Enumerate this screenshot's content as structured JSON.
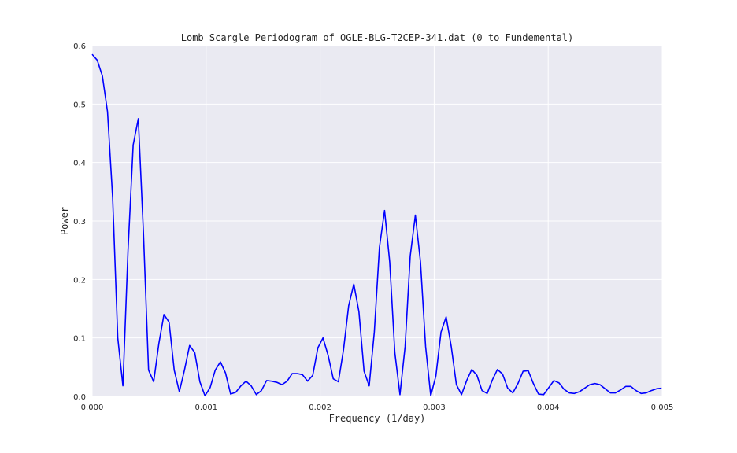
{
  "chart_data": {
    "type": "line",
    "title": "Lomb Scargle Periodogram of OGLE-BLG-T2CEP-341.dat (0 to Fundemental)",
    "x_label": "Frequency (1/day)",
    "y_label": "Power",
    "x": [
      0,
      4.5e-05,
      9e-05,
      0.000135,
      0.00018,
      0.000225,
      0.00027,
      0.000315,
      0.00036,
      0.000405,
      0.00045,
      0.000495,
      0.00054,
      0.000585,
      0.00063,
      0.000675,
      0.00072,
      0.000765,
      0.00081,
      0.000855,
      0.0009,
      0.000945,
      0.00099,
      0.001035,
      0.00108,
      0.001125,
      0.00117,
      0.001215,
      0.00126,
      0.001305,
      0.00135,
      0.001395,
      0.00144,
      0.001485,
      0.00153,
      0.001575,
      0.00162,
      0.001665,
      0.00171,
      0.001755,
      0.0018,
      0.001845,
      0.00189,
      0.001935,
      0.00198,
      0.002025,
      0.00207,
      0.002115,
      0.00216,
      0.002205,
      0.00225,
      0.002295,
      0.00234,
      0.002385,
      0.00243,
      0.002475,
      0.00252,
      0.002565,
      0.00261,
      0.002655,
      0.0027,
      0.002745,
      0.00279,
      0.002835,
      0.00288,
      0.002925,
      0.00297,
      0.003015,
      0.00306,
      0.003105,
      0.00315,
      0.003195,
      0.00324,
      0.003285,
      0.00333,
      0.003375,
      0.00342,
      0.003465,
      0.00351,
      0.003555,
      0.0036,
      0.003645,
      0.00369,
      0.003735,
      0.00378,
      0.003825,
      0.00387,
      0.003915,
      0.00396,
      0.004005,
      0.00405,
      0.004095,
      0.00414,
      0.004185,
      0.00423,
      0.004275,
      0.00432,
      0.004365,
      0.00441,
      0.004455,
      0.0045,
      0.004545,
      0.00459,
      0.004635,
      0.00468,
      0.004725,
      0.00477,
      0.004815,
      0.00486,
      0.004905,
      0.00495,
      0.004995
    ],
    "series": [
      {
        "color": "#0000ff",
        "values": [
          0.585,
          0.575,
          0.548,
          0.487,
          0.34,
          0.1,
          0.018,
          0.25,
          0.43,
          0.475,
          0.28,
          0.045,
          0.025,
          0.09,
          0.14,
          0.127,
          0.045,
          0.008,
          0.045,
          0.087,
          0.075,
          0.025,
          0.001,
          0.015,
          0.045,
          0.059,
          0.04,
          0.004,
          0.007,
          0.018,
          0.026,
          0.018,
          0.003,
          0.01,
          0.027,
          0.026,
          0.024,
          0.02,
          0.026,
          0.039,
          0.039,
          0.037,
          0.026,
          0.036,
          0.083,
          0.1,
          0.07,
          0.03,
          0.025,
          0.08,
          0.155,
          0.192,
          0.145,
          0.043,
          0.018,
          0.11,
          0.255,
          0.318,
          0.23,
          0.075,
          0.003,
          0.085,
          0.24,
          0.31,
          0.23,
          0.085,
          0.001,
          0.035,
          0.11,
          0.136,
          0.085,
          0.02,
          0.003,
          0.027,
          0.046,
          0.036,
          0.01,
          0.005,
          0.028,
          0.046,
          0.038,
          0.014,
          0.006,
          0.022,
          0.043,
          0.044,
          0.022,
          0.004,
          0.003,
          0.015,
          0.027,
          0.023,
          0.012,
          0.006,
          0.005,
          0.008,
          0.014,
          0.02,
          0.022,
          0.02,
          0.013,
          0.006,
          0.006,
          0.011,
          0.017,
          0.017,
          0.01,
          0.005,
          0.006,
          0.01,
          0.013,
          0.014
        ]
      }
    ],
    "xlim": [
      0,
      0.005
    ],
    "ylim": [
      0,
      0.6
    ],
    "xticks": [
      {
        "value": 0,
        "label": "0.000"
      },
      {
        "value": 0.001,
        "label": "0.001"
      },
      {
        "value": 0.002,
        "label": "0.002"
      },
      {
        "value": 0.003,
        "label": "0.003"
      },
      {
        "value": 0.004,
        "label": "0.004"
      },
      {
        "value": 0.005,
        "label": "0.005"
      }
    ],
    "yticks": [
      {
        "value": 0,
        "label": "0.0"
      },
      0.1,
      0.2,
      0.3,
      0.4,
      0.5,
      0.6
    ],
    "grid": true
  }
}
